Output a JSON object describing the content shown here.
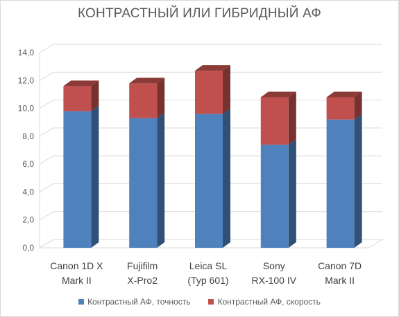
{
  "chart_data": {
    "type": "bar",
    "stacked": true,
    "three_d": true,
    "title": "КОНТРАСТНЫЙ ИЛИ ГИБРИДНЫЙ АФ",
    "categories": [
      [
        "Canon 1D X",
        "Mark II"
      ],
      [
        "Fujifilm",
        "X-Pro2"
      ],
      [
        "Leica SL",
        "(Typ 601)"
      ],
      [
        "Sony",
        "RX-100 IV"
      ],
      [
        "Canon 7D",
        "Mark II"
      ]
    ],
    "series": [
      {
        "name": "Контрастный АФ, точность",
        "color": "#4f81bd",
        "values": [
          9.8,
          9.3,
          9.6,
          7.4,
          9.2
        ]
      },
      {
        "name": "Контрастный АФ, скорость",
        "color": "#c0504d",
        "values": [
          1.8,
          2.5,
          3.1,
          3.4,
          1.6
        ]
      }
    ],
    "ylim": [
      0,
      14
    ],
    "yticks": [
      "0,0",
      "2,0",
      "4,0",
      "6,0",
      "8,0",
      "10,0",
      "12,0",
      "14,0"
    ],
    "grid": true,
    "legend_position": "bottom"
  }
}
